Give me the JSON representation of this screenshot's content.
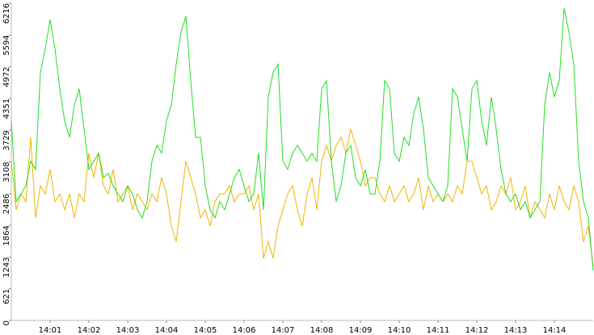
{
  "chart_data": {
    "type": "line",
    "xlim": [
      0,
      15
    ],
    "xticks": [
      {
        "value": 1,
        "label": "14:01"
      },
      {
        "value": 2,
        "label": "14:02"
      },
      {
        "value": 3,
        "label": "14:03"
      },
      {
        "value": 4,
        "label": "14:04"
      },
      {
        "value": 5,
        "label": "14:05"
      },
      {
        "value": 6,
        "label": "14:06"
      },
      {
        "value": 7,
        "label": "14:07"
      },
      {
        "value": 8,
        "label": "14:08"
      },
      {
        "value": 9,
        "label": "14:09"
      },
      {
        "value": 10,
        "label": "14:10"
      },
      {
        "value": 11,
        "label": "14:11"
      },
      {
        "value": 12,
        "label": "14:12"
      },
      {
        "value": 13,
        "label": "14:13"
      },
      {
        "value": 14,
        "label": "14:14"
      }
    ],
    "ylim": [
      0,
      6216
    ],
    "yticks": [
      0,
      621,
      1243,
      1864,
      2486,
      3108,
      3729,
      4351,
      4972,
      5594,
      6216
    ],
    "series": [
      {
        "color": "#22dd22",
        "values": [
          3910,
          2330,
          2480,
          2640,
          3120,
          2960,
          4860,
          5330,
          5890,
          5330,
          4540,
          3910,
          3590,
          4220,
          4540,
          3750,
          2960,
          3120,
          3280,
          2800,
          2880,
          2640,
          2480,
          2330,
          2640,
          2480,
          2170,
          2010,
          2330,
          3120,
          3430,
          3280,
          3910,
          4220,
          5020,
          5650,
          5960,
          4700,
          3590,
          3590,
          2640,
          2170,
          2010,
          2330,
          2170,
          2480,
          2800,
          2960,
          2640,
          2330,
          2480,
          3280,
          2170,
          4380,
          4860,
          5020,
          3120,
          2960,
          3280,
          3430,
          3280,
          3120,
          3280,
          3120,
          4540,
          4700,
          3120,
          2330,
          2640,
          3280,
          3430,
          2800,
          2640,
          2960,
          2480,
          2480,
          3120,
          4700,
          4540,
          3280,
          3120,
          3590,
          3430,
          4060,
          4380,
          3750,
          2800,
          2640,
          2480,
          2330,
          2640,
          4540,
          4380,
          3750,
          3120,
          4540,
          4700,
          3910,
          3430,
          4380,
          3750,
          2960,
          2480,
          2330,
          2480,
          2170,
          2330,
          2010,
          2170,
          2330,
          4220,
          4860,
          4380,
          4700,
          6120,
          5650,
          5020,
          3120,
          2330,
          2010,
          980
        ]
      },
      {
        "color": "#f0b400",
        "values": [
          3120,
          2170,
          2480,
          2330,
          3590,
          2010,
          2640,
          2480,
          2960,
          2330,
          2480,
          2170,
          2480,
          2010,
          2480,
          2330,
          3280,
          2800,
          3280,
          2640,
          2480,
          2960,
          2330,
          2480,
          2640,
          2170,
          2480,
          2330,
          2170,
          2480,
          2330,
          2800,
          2480,
          1850,
          1540,
          2330,
          3120,
          2800,
          2480,
          2010,
          2170,
          1850,
          2330,
          2480,
          2480,
          2640,
          2330,
          2480,
          2480,
          2640,
          2170,
          2480,
          1220,
          1540,
          1220,
          1850,
          2170,
          2480,
          2640,
          2170,
          1850,
          2480,
          2800,
          2170,
          3120,
          3430,
          3120,
          3430,
          3590,
          3280,
          3750,
          3430,
          3120,
          2640,
          2800,
          2800,
          2480,
          2330,
          2640,
          2330,
          2480,
          2640,
          2330,
          2480,
          2800,
          2170,
          2640,
          2330,
          2480,
          2330,
          2480,
          2330,
          2640,
          2480,
          3120,
          3120,
          2800,
          2480,
          2640,
          2170,
          2330,
          2640,
          2480,
          2800,
          2170,
          2330,
          2640,
          2010,
          2330,
          2170,
          2010,
          2480,
          2170,
          2640,
          2330,
          2170,
          2640,
          2330,
          1540,
          1850,
          1060
        ]
      }
    ]
  }
}
